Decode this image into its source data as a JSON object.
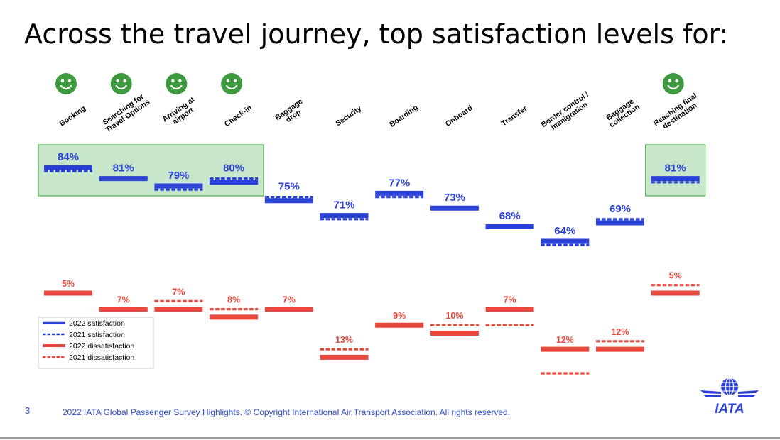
{
  "page": {
    "title": "Across the travel journey, top satisfaction levels for:",
    "page_number": "3",
    "footer": "2022 IATA Global Passenger Survey Highlights. © Copyright International Air Transport Association.  All rights reserved.",
    "logo_text": "IATA"
  },
  "colors": {
    "satisfaction": "#2a41d8",
    "dissatisfaction": "#e8483b",
    "highlight_fill": "#c8e6c9",
    "highlight_border": "#4caf50",
    "smiley": "#3e9a3e"
  },
  "chart_data": {
    "type": "line",
    "categories": [
      [
        "Booking"
      ],
      [
        "Searching for",
        "Travel Options"
      ],
      [
        "Arriving at",
        "airport"
      ],
      [
        "Check-in"
      ],
      [
        "Baggage",
        "drop"
      ],
      [
        "Security"
      ],
      [
        "Boarding"
      ],
      [
        "Onboard"
      ],
      [
        "Transfer"
      ],
      [
        "Border control /",
        "immigration"
      ],
      [
        "Baggage",
        "collection"
      ],
      [
        "Reaching final",
        "destination"
      ]
    ],
    "top_satisfaction_highlight": [
      true,
      true,
      true,
      true,
      false,
      false,
      false,
      false,
      false,
      false,
      false,
      true
    ],
    "series": [
      {
        "name": "2022 satisfaction",
        "style": "solid",
        "values": [
          84,
          81,
          79,
          80,
          75,
          71,
          77,
          73,
          68,
          64,
          69,
          81
        ]
      },
      {
        "name": "2021 satisfaction",
        "style": "dashed",
        "values": [
          83,
          81,
          78,
          81,
          76,
          70,
          76,
          73,
          68,
          63,
          70,
          80
        ]
      },
      {
        "name": "2022 dissatisfaction",
        "style": "solid",
        "values": [
          5,
          7,
          7,
          8,
          7,
          13,
          9,
          10,
          7,
          12,
          12,
          5
        ]
      },
      {
        "name": "2021 dissatisfaction",
        "style": "dashed",
        "values": [
          5,
          7,
          6,
          7,
          7,
          12,
          9,
          9,
          9,
          15,
          11,
          4
        ]
      }
    ],
    "data_labels": {
      "satisfaction": [
        "84%",
        "81%",
        "79%",
        "80%",
        "75%",
        "71%",
        "77%",
        "73%",
        "68%",
        "64%",
        "69%",
        "81%"
      ],
      "dissatisfaction": [
        "5%",
        "7%",
        "7%",
        "8%",
        "7%",
        "13%",
        "9%",
        "10%",
        "7%",
        "12%",
        "12%",
        "5%"
      ]
    },
    "legend": {
      "placement": "bottom-left",
      "items": [
        "2022 satisfaction",
        "2021 satisfaction",
        "2022 dissatisfaction",
        "2021 dissatisfaction"
      ]
    }
  }
}
